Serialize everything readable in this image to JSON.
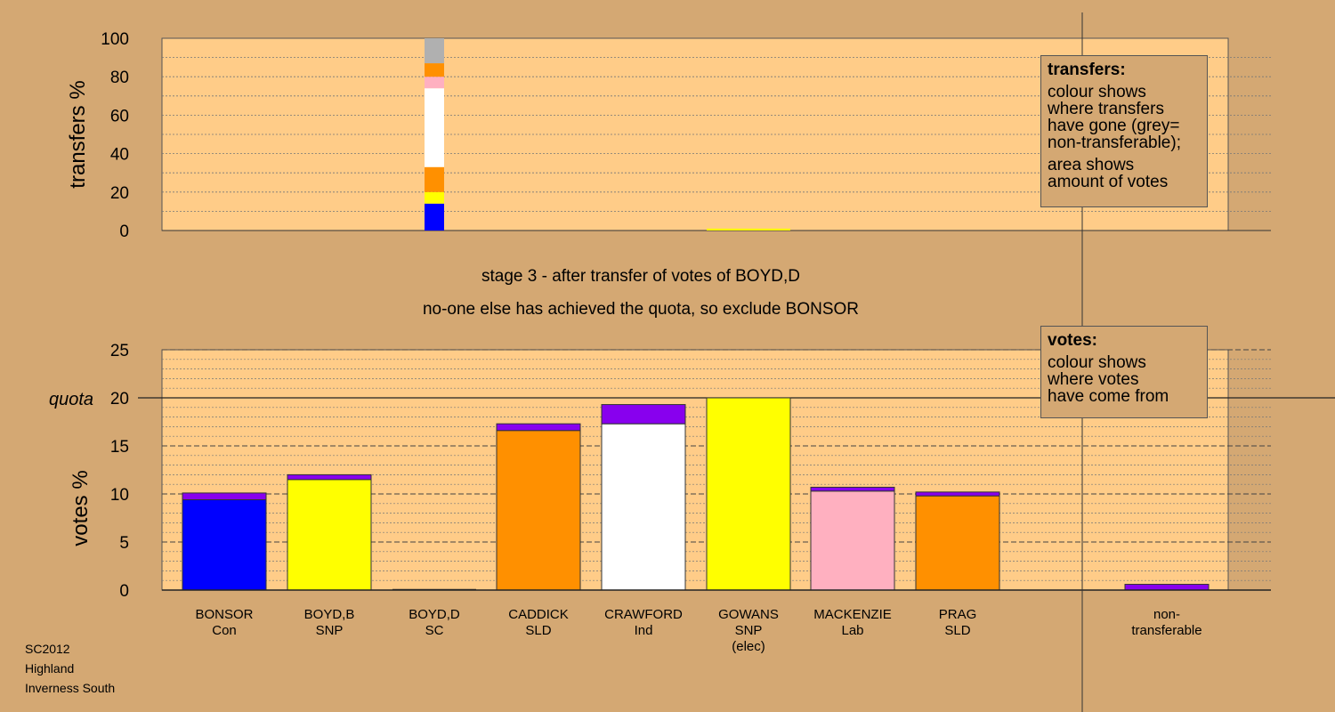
{
  "stage_title": "stage 3 - after transfer of votes of BOYD,D",
  "stage_subtitle": "no-one else has achieved the quota, so exclude BONSOR",
  "transfers_legend": {
    "title": "transfers:",
    "line1": "colour shows",
    "line2": "where transfers",
    "line3": "have gone (grey=",
    "line4": "non-transferable);",
    "line5": "area shows",
    "line6": "amount of votes"
  },
  "votes_legend": {
    "title": "votes:",
    "line1": "colour shows",
    "line2": "where votes",
    "line3": "have come from"
  },
  "footer": {
    "line1": "SC2012",
    "line2": "Highland",
    "line3": "Inverness South"
  },
  "colors": {
    "background": "#d4a873",
    "plot_bg": "#ffcc88",
    "Con": "#0000ff",
    "SNP": "#ffff00",
    "SLD": "#ff9000",
    "Ind": "#ffffff",
    "Lab": "#ffb0c0",
    "SC": "#8800ee",
    "non_transferable": "#b0b0b0"
  },
  "chart_data": [
    {
      "type": "bar",
      "stacked": true,
      "ylabel": "transfers %",
      "ylim": [
        0,
        100
      ],
      "yticks": [
        0,
        20,
        40,
        60,
        80,
        100
      ],
      "grid": true,
      "categories": [
        "BONSOR",
        "BOYD,B",
        "BOYD,D",
        "CADDICK",
        "CRAWFORD",
        "GOWANS",
        "MACKENZIE",
        "PRAG"
      ],
      "stacks": [
        {
          "category": "BOYD,D",
          "segments": [
            {
              "to": "BONSOR",
              "color": "Con",
              "value": 14
            },
            {
              "to": "BOYD,B",
              "color": "SNP",
              "value": 6
            },
            {
              "to": "CADDICK",
              "color": "SLD",
              "value": 13
            },
            {
              "to": "CRAWFORD",
              "color": "Ind",
              "value": 41
            },
            {
              "to": "MACKENZIE",
              "color": "Lab",
              "value": 6
            },
            {
              "to": "PRAG",
              "color": "SLD",
              "value": 7
            },
            {
              "to": "non-transferable",
              "color": "non_transferable",
              "value": 13
            }
          ]
        },
        {
          "category": "GOWANS",
          "segments": [
            {
              "to": "GOWANS",
              "color": "SNP",
              "value": 1
            }
          ]
        }
      ]
    },
    {
      "type": "bar",
      "stacked": true,
      "ylabel": "votes %",
      "ylim": [
        0,
        25
      ],
      "yticks": [
        0,
        5,
        10,
        15,
        20,
        25
      ],
      "quota": 20,
      "quota_label": "quota",
      "grid": true,
      "categories": [
        {
          "name": "BONSOR",
          "party": "Con",
          "note": ""
        },
        {
          "name": "BOYD,B",
          "party": "SNP",
          "note": ""
        },
        {
          "name": "BOYD,D",
          "party": "SC",
          "note": ""
        },
        {
          "name": "CADDICK",
          "party": "SLD",
          "note": ""
        },
        {
          "name": "CRAWFORD",
          "party": "Ind",
          "note": ""
        },
        {
          "name": "GOWANS",
          "party": "SNP",
          "note": "(elec)"
        },
        {
          "name": "MACKENZIE",
          "party": "Lab",
          "note": ""
        },
        {
          "name": "PRAG",
          "party": "SLD",
          "note": ""
        }
      ],
      "non_transferable_label": "non-\ntransferable",
      "series": [
        {
          "source": "first preferences",
          "values": [
            9.4,
            11.5,
            0,
            16.6,
            17.3,
            20.0,
            10.3,
            9.8
          ]
        },
        {
          "source": "BOYD,D",
          "color": "SC",
          "values": [
            0.7,
            0.5,
            0,
            0.7,
            2.0,
            0,
            0.4,
            0.4
          ]
        }
      ],
      "non_transferable": 0.6
    }
  ]
}
